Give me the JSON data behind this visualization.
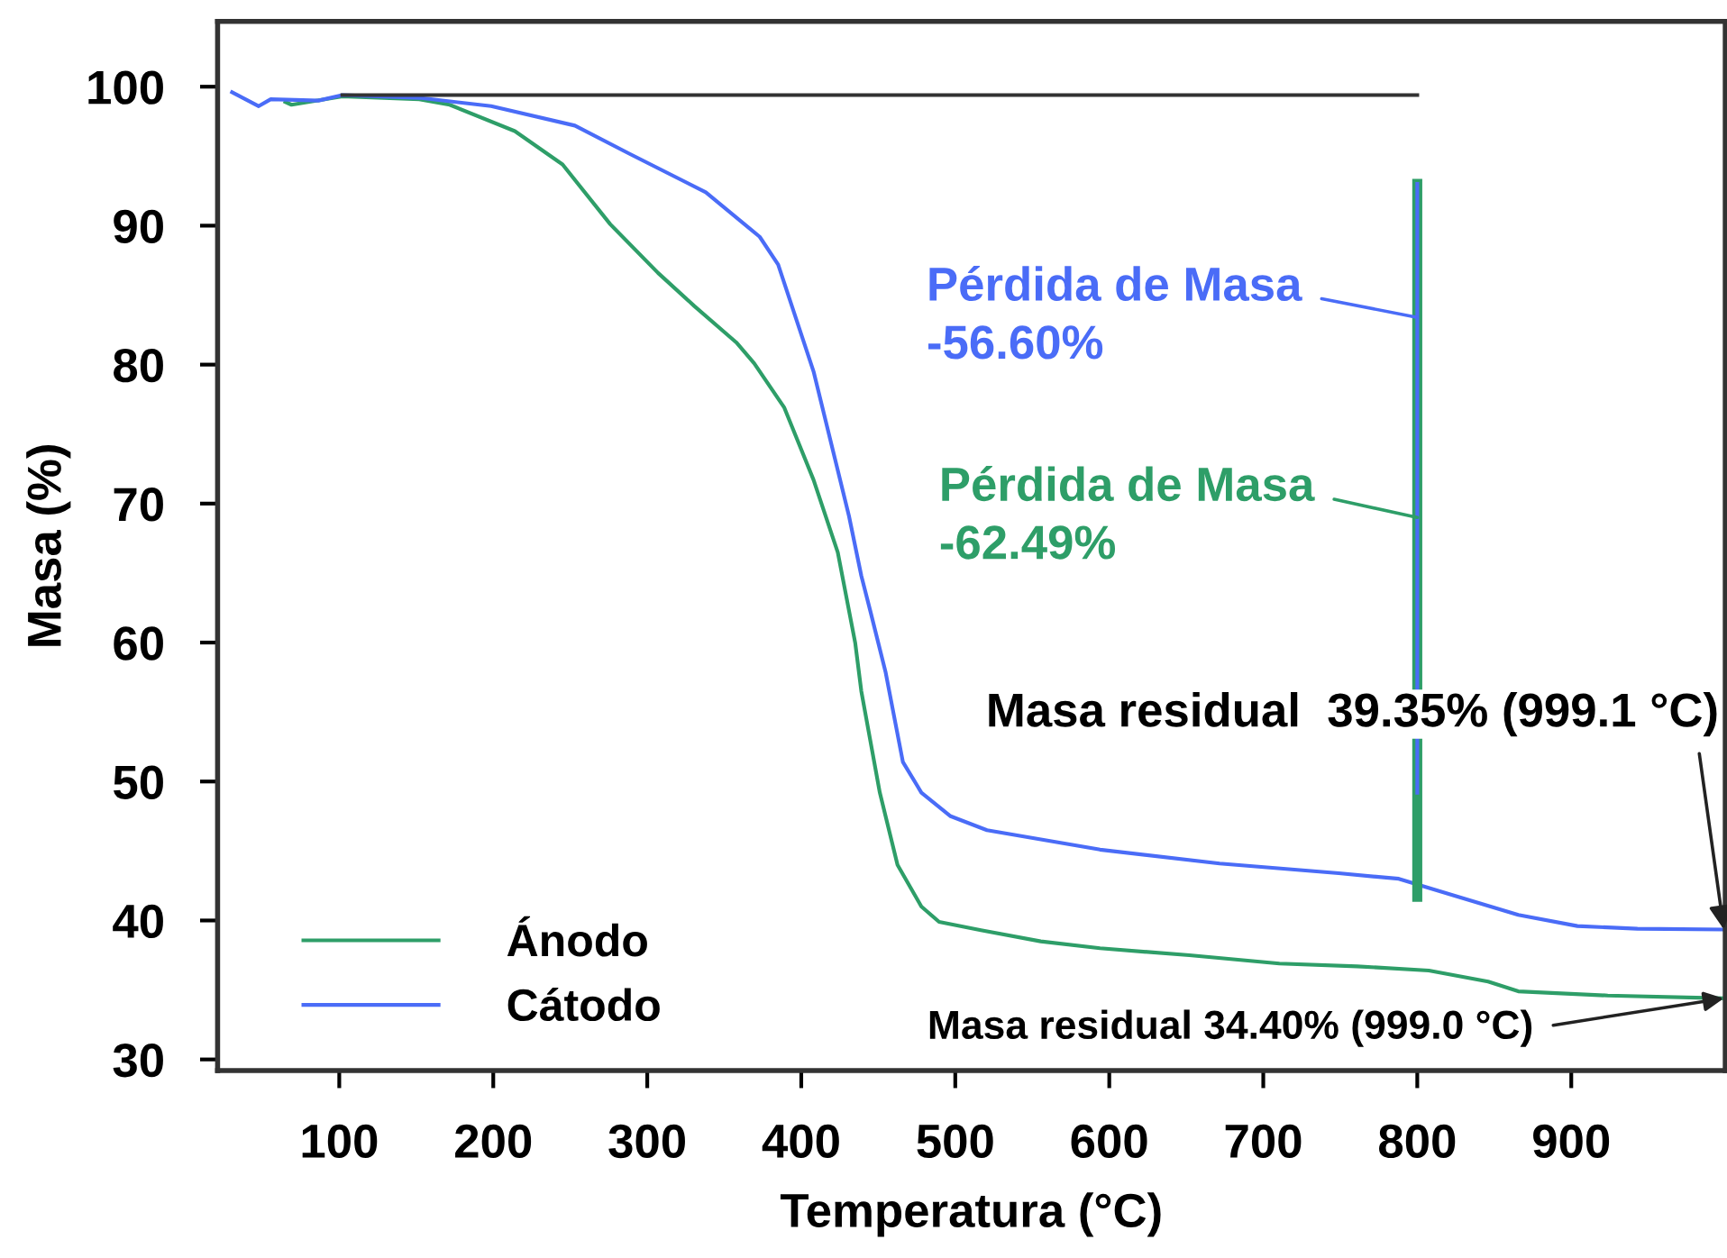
{
  "chart_data": {
    "type": "line",
    "xlabel": "Temperatura (°C)",
    "ylabel": "Masa (%)",
    "xlim": [
      21,
      1000
    ],
    "ylim": [
      29.2,
      104.7
    ],
    "xticks": [
      100,
      200,
      300,
      400,
      500,
      600,
      700,
      800,
      900
    ],
    "yticks": [
      30,
      40,
      50,
      60,
      70,
      80,
      90,
      100
    ],
    "grid": false,
    "legend": "bottom left",
    "marker": "none",
    "line_style": "solid",
    "series": [
      {
        "name": "Ánodo",
        "color": "#2e9e68",
        "x": [
          65,
          69,
          102,
          152,
          171.7,
          214,
          245,
          276,
          307,
          330.7,
          357.8,
          369.4,
          389,
          408,
          423.7,
          435,
          439,
          451,
          462.5,
          478,
          489.5,
          516.7,
          555.5,
          594,
          652,
          710.5,
          761,
          807.5,
          846,
          865.6,
          923.7,
          999.0
        ],
        "values": [
          98.9,
          98.7,
          99.3,
          99.1,
          98.7,
          96.8,
          94.4,
          90.1,
          86.6,
          84.2,
          81.6,
          80.1,
          76.9,
          71.7,
          66.5,
          60.0,
          56.5,
          49.2,
          44.0,
          41.0,
          39.9,
          39.3,
          38.5,
          38.0,
          37.5,
          36.9,
          36.7,
          36.4,
          35.6,
          34.9,
          34.6,
          34.4
        ]
      },
      {
        "name": "Cátodo",
        "color": "#4a6cf7",
        "x": [
          30.4,
          47.7,
          55.5,
          86.5,
          102,
          152,
          198.6,
          253,
          288,
          338,
          373,
          385,
          408,
          431,
          439,
          445,
          454.7,
          466,
          478,
          497,
          520.6,
          594,
          671.7,
          749,
          788,
          826.7,
          865.6,
          904,
          943,
          999.1
        ],
        "values": [
          99.6,
          98.6,
          99.1,
          99.0,
          99.4,
          99.2,
          98.6,
          97.2,
          95.2,
          92.4,
          89.2,
          87.2,
          79.5,
          69.1,
          64.8,
          62.2,
          57.9,
          51.4,
          49.2,
          47.5,
          46.5,
          45.1,
          44.1,
          43.4,
          43.0,
          41.7,
          40.4,
          39.6,
          39.4,
          39.35
        ]
      },
      {
        "color": "#333333",
        "x": [
          102,
          800
        ],
        "values": [
          99.4,
          99.4
        ]
      },
      {
        "color": "#2e9e68",
        "x": [
          800,
          800
        ],
        "values": [
          93,
          41.7
        ]
      },
      {
        "color": "#4a6cf7",
        "x": [
          800,
          800
        ],
        "values": [
          93,
          49.2
        ]
      }
    ],
    "annotations": [
      {
        "text": "Pérdida de Masa\n-56.60%",
        "x": 800,
        "y": 83.4
      },
      {
        "text": "Pérdida de Masa\n-62.49%",
        "x": 800,
        "y": 69.0
      },
      {
        "text": "Masa residual  39.35% (999.1 °C)",
        "x": 999.1,
        "y": 39.35
      },
      {
        "text": "Masa residual 34.40% (999.0 °C)",
        "x": 999.0,
        "y": 34.4
      }
    ]
  }
}
